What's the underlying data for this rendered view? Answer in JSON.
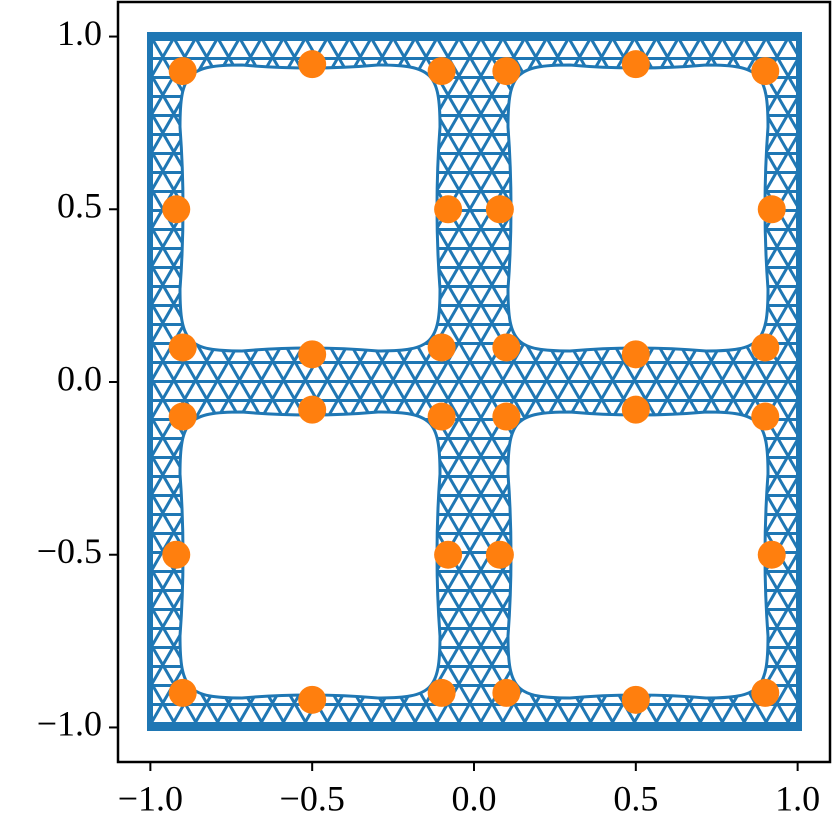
{
  "chart_data": {
    "type": "scatter",
    "x": [
      -0.9,
      -0.5,
      -0.1,
      0.1,
      0.5,
      0.9,
      -0.92,
      -0.08,
      0.08,
      0.92,
      -0.9,
      -0.5,
      -0.1,
      0.1,
      0.5,
      0.9,
      -0.9,
      -0.5,
      -0.1,
      0.1,
      0.5,
      0.9,
      -0.92,
      -0.08,
      0.08,
      0.92,
      -0.9,
      -0.5,
      -0.1,
      0.1,
      0.5,
      0.9
    ],
    "y": [
      0.9,
      0.92,
      0.9,
      0.9,
      0.92,
      0.9,
      0.5,
      0.5,
      0.5,
      0.5,
      0.1,
      0.08,
      0.1,
      0.1,
      0.08,
      0.1,
      -0.1,
      -0.08,
      -0.1,
      -0.1,
      -0.08,
      -0.1,
      -0.5,
      -0.5,
      -0.5,
      -0.5,
      -0.9,
      -0.92,
      -0.9,
      -0.9,
      -0.92,
      -0.9
    ],
    "color": "#ff7f0e",
    "xlim": [
      -1.1,
      1.1
    ],
    "ylim": [
      -1.1,
      1.1
    ],
    "xticks": [
      {
        "value": -1.0,
        "label": "−1.0"
      },
      {
        "value": -0.5,
        "label": "−0.5"
      },
      {
        "value": 0,
        "label": "0.0"
      },
      {
        "value": 0.5,
        "label": "0.5"
      },
      {
        "value": 1.0,
        "label": "1.0"
      }
    ],
    "yticks": [
      {
        "value": -1.0,
        "label": "−1.0"
      },
      {
        "value": -0.5,
        "label": "−0.5"
      },
      {
        "value": 0,
        "label": "0.0"
      },
      {
        "value": 0.5,
        "label": "0.5"
      },
      {
        "value": 1.0,
        "label": "1.0"
      }
    ]
  }
}
